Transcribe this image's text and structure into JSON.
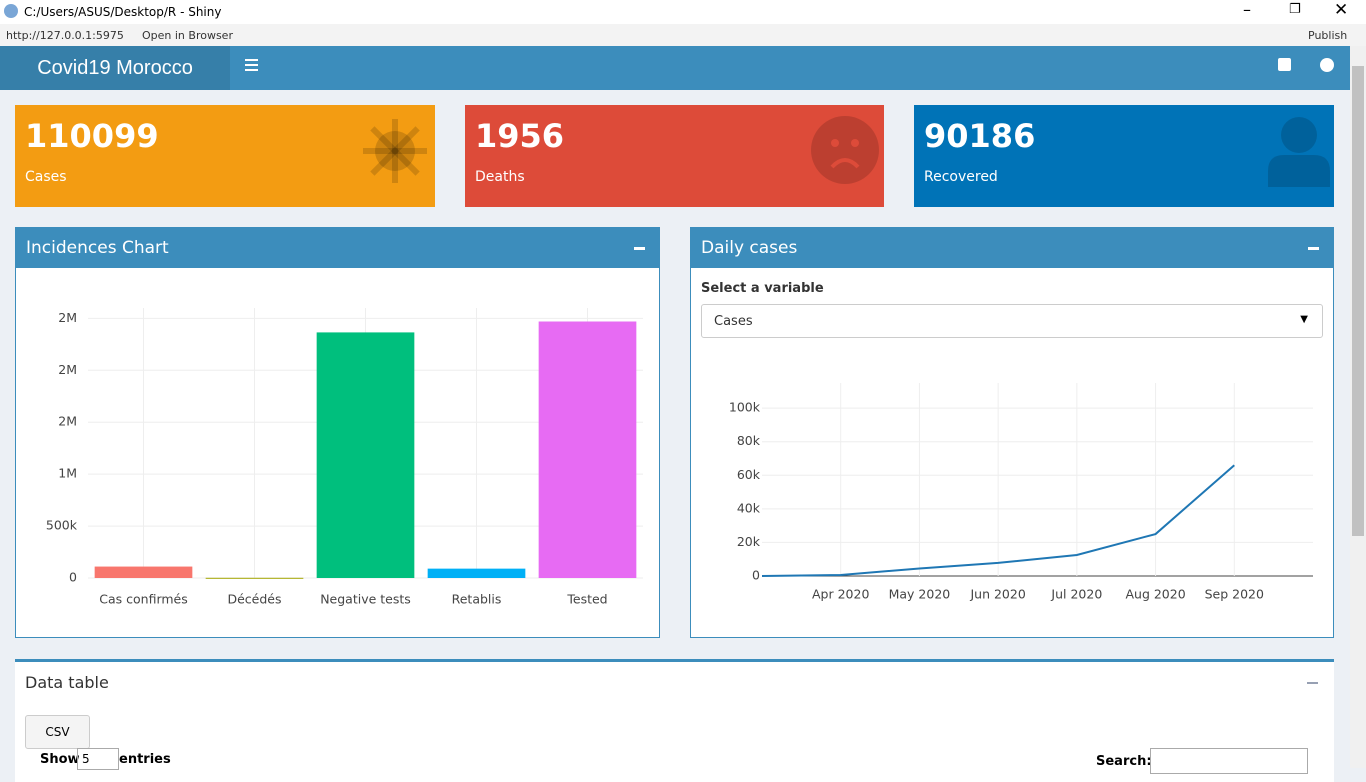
{
  "window": {
    "title": "C:/Users/ASUS/Desktop/R - Shiny",
    "url": "http://127.0.0.1:5975",
    "open_browser": "Open in Browser",
    "publish": "Publish"
  },
  "header": {
    "title": "Covid19 Morocco"
  },
  "value_boxes": [
    {
      "value": 110099,
      "label": "Cases"
    },
    {
      "value": 1956,
      "label": "Deaths"
    },
    {
      "value": 90186,
      "label": "Recovered"
    }
  ],
  "bar_box": {
    "title": "Incidences Chart"
  },
  "line_box": {
    "title": "Daily cases",
    "select_label": "Select a variable",
    "select_value": "Cases"
  },
  "table_box": {
    "title": "Data table",
    "csv": "CSV",
    "show": "Show",
    "length": "5",
    "entries": "entries",
    "search": "Search:"
  },
  "chart_data": [
    {
      "type": "bar",
      "categories": [
        "Cas confirmés",
        "Décédés",
        "Negative tests",
        "Retablis",
        "Tested"
      ],
      "values": [
        110099,
        1956,
        2365000,
        90186,
        2470000
      ],
      "colors": [
        "#f8766d",
        "#a3a500",
        "#00bf7d",
        "#00b0f6",
        "#e76bf3"
      ],
      "ylim": [
        0,
        2600000
      ],
      "yticks": [
        0,
        {
          "value": 500000,
          "label": "500k"
        },
        {
          "value": 1000000,
          "label": "1M"
        },
        {
          "value": 1500000,
          "label": "2M"
        },
        {
          "value": 2000000,
          "label": "2M"
        },
        {
          "value": 2500000,
          "label": "2M"
        }
      ],
      "grid": true
    },
    {
      "type": "line",
      "x": [
        "2020-03",
        "2020-04",
        "2020-05",
        "2020-06",
        "2020-07",
        "2020-08",
        "2020-09"
      ],
      "series": [
        {
          "color": "#1f77b4",
          "values": [
            0,
            600,
            4500,
            7800,
            12500,
            25000,
            66000
          ]
        }
      ],
      "xlim": [
        "2020-03",
        "2020-10"
      ],
      "xticks": [
        {
          "value": "2020-04",
          "label": "Apr 2020"
        },
        {
          "value": "2020-05",
          "label": "May 2020"
        },
        {
          "value": "2020-06",
          "label": "Jun 2020"
        },
        {
          "value": "2020-07",
          "label": "Jul 2020"
        },
        {
          "value": "2020-08",
          "label": "Aug 2020"
        },
        {
          "value": "2020-09",
          "label": "Sep 2020"
        }
      ],
      "ylim": [
        0,
        115000
      ],
      "yticks": [
        0,
        {
          "value": 20000,
          "label": "20k"
        },
        {
          "value": 40000,
          "label": "40k"
        },
        {
          "value": 60000,
          "label": "60k"
        },
        {
          "value": 80000,
          "label": "80k"
        },
        {
          "value": 100000,
          "label": "100k"
        }
      ],
      "grid": true
    }
  ]
}
